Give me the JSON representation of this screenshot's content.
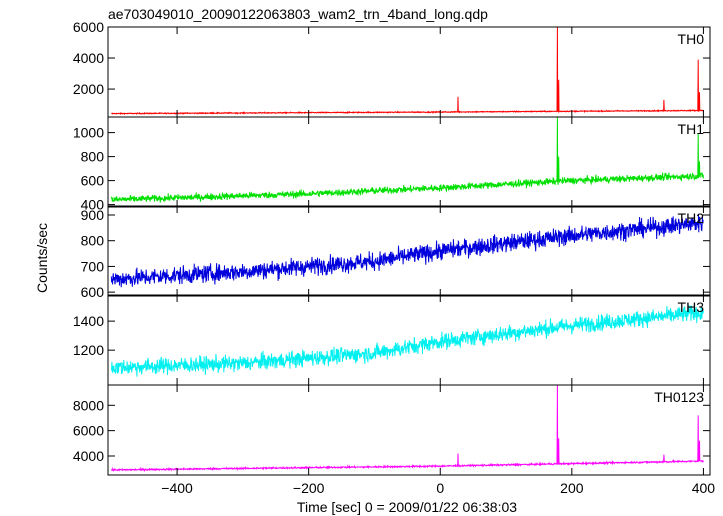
{
  "chart_data": {
    "type": "line",
    "title": "ae703049010_20090122063803_wam2_trn_4band_long.qdp",
    "xlabel": "Time [sec] 0 = 2009/01/22 06:38:03",
    "ylabel": "Counts/sec",
    "xlim": [
      -505,
      410
    ],
    "x_ticks": [
      -400,
      -200,
      0,
      200,
      400
    ],
    "x_tick_labels": [
      "−400",
      "−200",
      "0",
      "200",
      "400"
    ],
    "panels": [
      {
        "name": "TH0",
        "color": "#ff0000",
        "ylim": [
          200,
          6000
        ],
        "y_ticks": [
          2000,
          4000,
          6000
        ],
        "y_tick_labels": [
          "2000",
          "4000",
          "6000"
        ],
        "trend": [
          [
            -500,
            420
          ],
          [
            0,
            520
          ],
          [
            400,
            620
          ]
        ],
        "noise": 30,
        "spikes": [
          [
            27,
            1500
          ],
          [
            178,
            6000
          ],
          [
            180,
            2600
          ],
          [
            340,
            1300
          ],
          [
            392,
            3900
          ],
          [
            394,
            1800
          ]
        ]
      },
      {
        "name": "TH1",
        "color": "#00e000",
        "ylim": [
          380,
          1130
        ],
        "y_ticks": [
          400,
          600,
          800,
          1000
        ],
        "y_tick_labels": [
          "400",
          "600",
          "800",
          "1000"
        ],
        "trend": [
          [
            -500,
            440
          ],
          [
            -200,
            490
          ],
          [
            0,
            540
          ],
          [
            200,
            600
          ],
          [
            400,
            640
          ]
        ],
        "noise": 28,
        "spikes": [
          [
            178,
            1130
          ],
          [
            180,
            800
          ],
          [
            392,
            990
          ],
          [
            394,
            760
          ]
        ]
      },
      {
        "name": "TH2",
        "color": "#0000dd",
        "ylim": [
          585,
          935
        ],
        "y_ticks": [
          600,
          700,
          800,
          900
        ],
        "y_tick_labels": [
          "600",
          "700",
          "800",
          "900"
        ],
        "trend": [
          [
            -500,
            650
          ],
          [
            -300,
            680
          ],
          [
            -100,
            720
          ],
          [
            0,
            760
          ],
          [
            200,
            820
          ],
          [
            400,
            870
          ]
        ],
        "noise": 34,
        "spikes": []
      },
      {
        "name": "TH3",
        "color": "#00f0f0",
        "ylim": [
          960,
          1580
        ],
        "y_ticks": [
          1200,
          1400
        ],
        "y_tick_labels": [
          "1200",
          "1400"
        ],
        "trend": [
          [
            -500,
            1080
          ],
          [
            -300,
            1110
          ],
          [
            -100,
            1180
          ],
          [
            0,
            1260
          ],
          [
            200,
            1370
          ],
          [
            400,
            1460
          ]
        ],
        "noise": 55,
        "spikes": []
      },
      {
        "name": "TH0123",
        "color": "#ff00ff",
        "ylim": [
          2500,
          9600
        ],
        "y_ticks": [
          4000,
          6000,
          8000
        ],
        "y_tick_labels": [
          "4000",
          "6000",
          "8000"
        ],
        "trend": [
          [
            -500,
            2900
          ],
          [
            0,
            3200
          ],
          [
            400,
            3600
          ]
        ],
        "noise": 60,
        "spikes": [
          [
            27,
            4200
          ],
          [
            178,
            9600
          ],
          [
            180,
            5400
          ],
          [
            340,
            4100
          ],
          [
            392,
            7200
          ],
          [
            394,
            5200
          ]
        ]
      }
    ],
    "grid": false,
    "legend": "panel labels top-right"
  }
}
